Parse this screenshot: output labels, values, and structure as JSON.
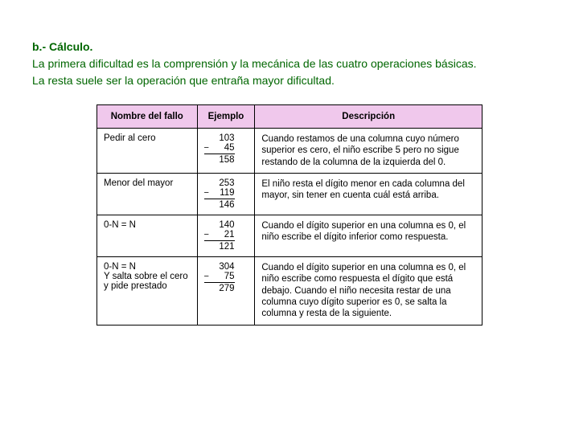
{
  "heading": "b.- Cálculo.",
  "para1": "La primera dificultad es la comprensión y la mecánica de las cuatro operaciones básicas.",
  "para2": "La resta suele ser la operación que entraña mayor dificultad.",
  "table": {
    "headers": {
      "name": "Nombre del fallo",
      "example": "Ejemplo",
      "desc": "Descripción"
    },
    "header_bg": "#f0c8ec",
    "rows": [
      {
        "name": "Pedir al cero",
        "top": "103",
        "sub": "45",
        "res": "158",
        "desc": "Cuando restamos de una columna cuyo número superior es cero, el niño escribe 5 pero no sigue restando de la columna de la izquierda del 0."
      },
      {
        "name": "Menor del mayor",
        "top": "253",
        "sub": "119",
        "res": "146",
        "desc": "El niño resta el dígito menor en cada columna del mayor, sin tener en cuenta cuál está arriba."
      },
      {
        "name": "0-N = N",
        "top": "140",
        "sub": "21",
        "res": "121",
        "desc": "Cuando el dígito superior en una columna es 0, el niño escribe el dígito inferior como respuesta."
      },
      {
        "name": "0-N = N\nY salta sobre el cero y pide prestado",
        "top": "304",
        "sub": "75",
        "res": "279",
        "desc": "Cuando el dígito superior en una columna es 0, el niño escribe como respuesta el dígito que está debajo. Cuando el niño necesita restar de una columna cuyo dígito superior es 0, se salta la columna y resta de la siguiente."
      }
    ]
  },
  "colors": {
    "text_green": "#006600",
    "border": "#000000"
  }
}
